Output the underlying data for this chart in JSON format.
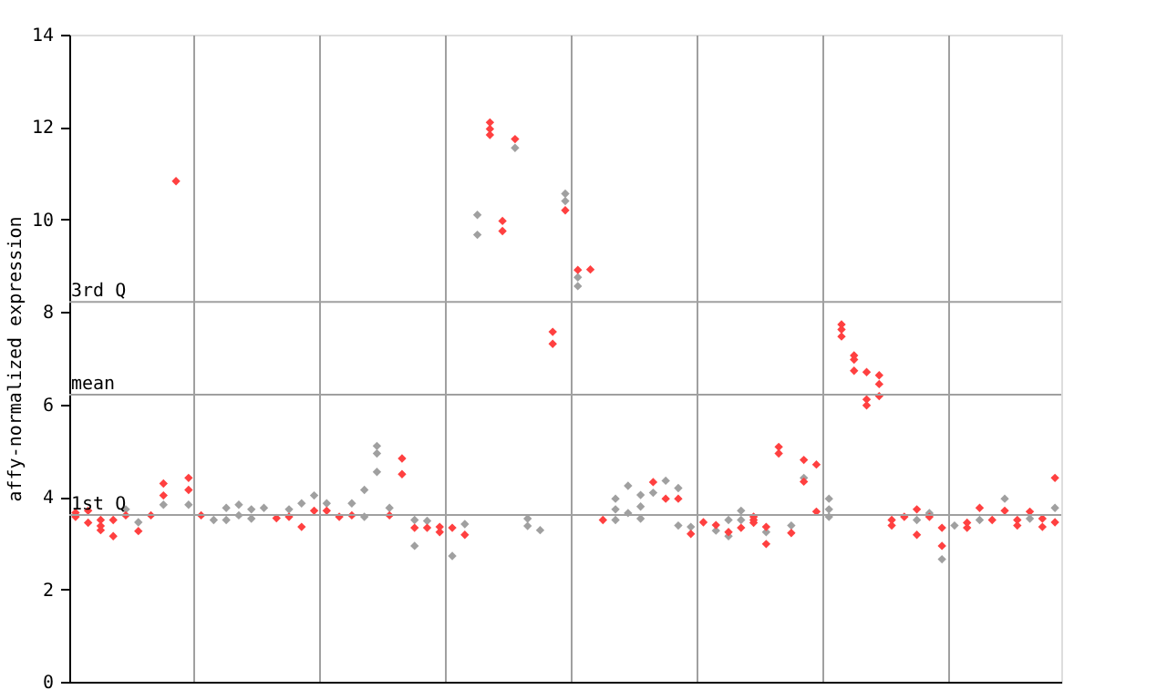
{
  "chart_data": {
    "type": "scatter",
    "ylabel": "affy-normalized expression",
    "categories": [
      null,
      null,
      null,
      null,
      null,
      null,
      null,
      null,
      null,
      null,
      null,
      null,
      null,
      null,
      null,
      null,
      null,
      null,
      null,
      null,
      null,
      null,
      null,
      null,
      null,
      null,
      null,
      null,
      null,
      null,
      null,
      null,
      null,
      null,
      null,
      null,
      null,
      null,
      null,
      null,
      null,
      null,
      null,
      null,
      null,
      null,
      null,
      null,
      null,
      null,
      null,
      null,
      null,
      null,
      null,
      null,
      null,
      null,
      null,
      null,
      null,
      null,
      null,
      null,
      null,
      null,
      null,
      null,
      null,
      null,
      null,
      null,
      null,
      null,
      null,
      null,
      null,
      null,
      null
    ],
    "ylim": [
      0,
      14
    ],
    "yticks": [
      0,
      2,
      4,
      6,
      8,
      10,
      12,
      14
    ],
    "grid": "x",
    "legend": false,
    "marker": "diamond",
    "tick_labels": "y",
    "ref_lines": [
      {
        "axis": "y",
        "value": 8.22,
        "label": "3rd Q",
        "color": "#a0a0a0"
      },
      {
        "axis": "y",
        "value": 6.21,
        "label": "mean",
        "color": "#a0a0a0"
      },
      {
        "axis": "y",
        "value": 3.61,
        "label": "1st Q",
        "color": "#a0a0a0"
      }
    ],
    "series": [
      {
        "color": "#a0a0a0",
        "values": [
          null,
          null,
          null,
          null,
          3.73,
          3.45,
          null,
          3.83,
          null,
          3.83,
          null,
          3.5,
          3.76,
          3.83,
          3.73,
          3.76,
          null,
          3.73,
          3.86,
          4.03,
          3.86,
          null,
          3.86,
          4.15,
          5.1,
          3.76,
          null,
          3.5,
          3.48,
          null,
          2.72,
          3.41,
          10.1,
          null,
          null,
          11.55,
          3.53,
          3.28,
          null,
          10.56,
          8.75,
          null,
          null,
          3.96,
          4.24,
          4.04,
          4.09,
          4.35,
          4.19,
          3.35,
          null,
          3.27,
          3.5,
          3.7,
          null,
          3.24,
          null,
          3.38,
          4.41,
          null,
          3.96,
          null,
          null,
          null,
          null,
          null,
          null,
          3.5,
          3.65,
          2.65,
          3.38,
          null,
          3.5,
          null,
          3.96,
          null,
          3.53,
          null,
          3.76
        ]
      },
      {
        "color": "#a0a0a0",
        "values": [
          null,
          null,
          null,
          null,
          null,
          null,
          null,
          null,
          null,
          null,
          null,
          null,
          3.5,
          3.6,
          3.53,
          null,
          null,
          null,
          null,
          null,
          null,
          null,
          null,
          3.57,
          4.94,
          null,
          null,
          2.94,
          null,
          null,
          null,
          null,
          9.67,
          null,
          null,
          null,
          3.37,
          null,
          null,
          10.4,
          8.56,
          null,
          null,
          3.73,
          3.65,
          3.79,
          null,
          null,
          3.38,
          null,
          null,
          null,
          3.15,
          3.5,
          null,
          null,
          null,
          null,
          null,
          null,
          3.73,
          null,
          null,
          null,
          null,
          null,
          null,
          null,
          null,
          null,
          null,
          null,
          null,
          null,
          null,
          null,
          null,
          null,
          null
        ]
      },
      {
        "color": "#a0a0a0",
        "values": [
          null,
          null,
          null,
          null,
          null,
          null,
          null,
          null,
          null,
          null,
          null,
          null,
          null,
          null,
          null,
          null,
          null,
          null,
          null,
          null,
          null,
          null,
          null,
          null,
          4.54,
          null,
          null,
          null,
          null,
          null,
          null,
          null,
          null,
          null,
          null,
          null,
          null,
          null,
          null,
          null,
          null,
          null,
          null,
          3.5,
          null,
          3.53,
          null,
          null,
          null,
          null,
          null,
          null,
          null,
          null,
          null,
          null,
          null,
          null,
          null,
          null,
          3.57,
          null,
          null,
          null,
          null,
          null,
          null,
          null,
          null,
          null,
          null,
          null,
          null,
          null,
          null,
          null,
          null,
          null,
          null
        ]
      },
      {
        "color": "#ff4040",
        "values": [
          3.66,
          3.7,
          3.5,
          3.5,
          3.6,
          3.26,
          3.6,
          4.29,
          10.83,
          4.41,
          3.6,
          null,
          null,
          null,
          null,
          null,
          3.54,
          3.57,
          3.35,
          3.7,
          3.7,
          3.57,
          3.6,
          null,
          null,
          3.6,
          4.83,
          3.33,
          3.33,
          3.35,
          3.33,
          3.18,
          null,
          12.1,
          9.97,
          11.74,
          null,
          null,
          7.57,
          10.2,
          8.91,
          8.92,
          3.5,
          null,
          null,
          null,
          4.32,
          3.96,
          3.96,
          3.2,
          3.45,
          3.39,
          3.24,
          3.33,
          3.5,
          3.35,
          5.08,
          3.22,
          4.8,
          4.7,
          null,
          7.73,
          7.06,
          6.7,
          6.63,
          3.5,
          3.57,
          3.73,
          3.57,
          3.33,
          null,
          3.44,
          3.76,
          3.5,
          3.7,
          3.5,
          3.68,
          3.53,
          4.41
        ]
      },
      {
        "color": "#ff4040",
        "values": [
          3.57,
          3.44,
          3.37,
          3.15,
          null,
          null,
          null,
          4.03,
          null,
          4.15,
          null,
          null,
          null,
          null,
          null,
          null,
          null,
          null,
          null,
          null,
          null,
          null,
          null,
          null,
          null,
          null,
          4.49,
          null,
          null,
          3.24,
          null,
          null,
          null,
          11.96,
          9.75,
          null,
          null,
          null,
          7.31,
          null,
          null,
          null,
          null,
          null,
          null,
          null,
          null,
          null,
          null,
          null,
          null,
          null,
          null,
          null,
          3.57,
          2.98,
          4.94,
          null,
          4.33,
          3.68,
          null,
          7.62,
          6.97,
          6.11,
          6.44,
          3.38,
          null,
          3.18,
          null,
          2.94,
          null,
          3.33,
          null,
          null,
          null,
          3.38,
          null,
          3.35,
          3.45
        ]
      },
      {
        "color": "#ff4040",
        "values": [
          null,
          null,
          3.28,
          null,
          null,
          null,
          null,
          null,
          null,
          null,
          null,
          null,
          null,
          null,
          null,
          null,
          null,
          null,
          null,
          null,
          null,
          null,
          null,
          null,
          null,
          null,
          null,
          null,
          null,
          null,
          null,
          null,
          null,
          11.83,
          null,
          null,
          null,
          null,
          null,
          null,
          null,
          null,
          null,
          null,
          null,
          null,
          null,
          null,
          null,
          null,
          null,
          null,
          null,
          null,
          3.44,
          null,
          null,
          null,
          null,
          null,
          null,
          7.47,
          6.73,
          5.98,
          6.18,
          null,
          null,
          null,
          null,
          null,
          null,
          null,
          null,
          null,
          null,
          null,
          null,
          null,
          null
        ]
      }
    ]
  }
}
